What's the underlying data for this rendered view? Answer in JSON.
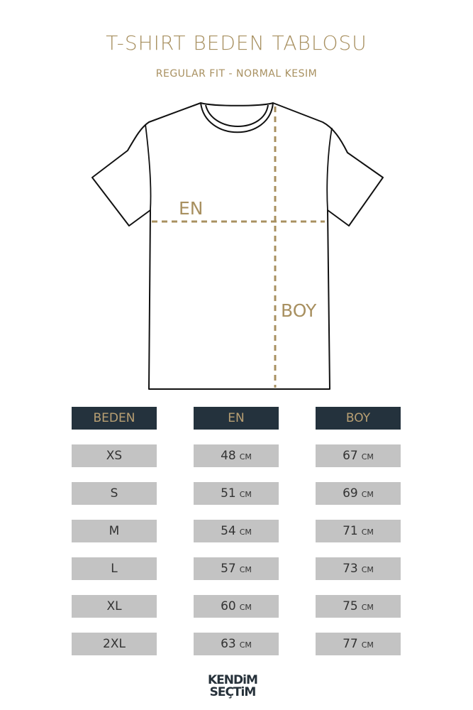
{
  "title": "T-SHIRT BEDEN TABLOSU",
  "subtitle": "REGULAR FIT - NORMAL KESIM",
  "diagram": {
    "width_label": "EN",
    "length_label": "BOY",
    "accent": "#a89060"
  },
  "table": {
    "headers": [
      "BEDEN",
      "EN",
      "BOY"
    ],
    "unit": "CM",
    "rows": [
      {
        "size": "XS",
        "en": "48",
        "boy": "67"
      },
      {
        "size": "S",
        "en": "51",
        "boy": "69"
      },
      {
        "size": "M",
        "en": "54",
        "boy": "71"
      },
      {
        "size": "L",
        "en": "57",
        "boy": "73"
      },
      {
        "size": "XL",
        "en": "60",
        "boy": "75"
      },
      {
        "size": "2XL",
        "en": "63",
        "boy": "77"
      }
    ]
  },
  "logo": {
    "line1": "KENDiM",
    "line2": "SEÇTiM"
  }
}
